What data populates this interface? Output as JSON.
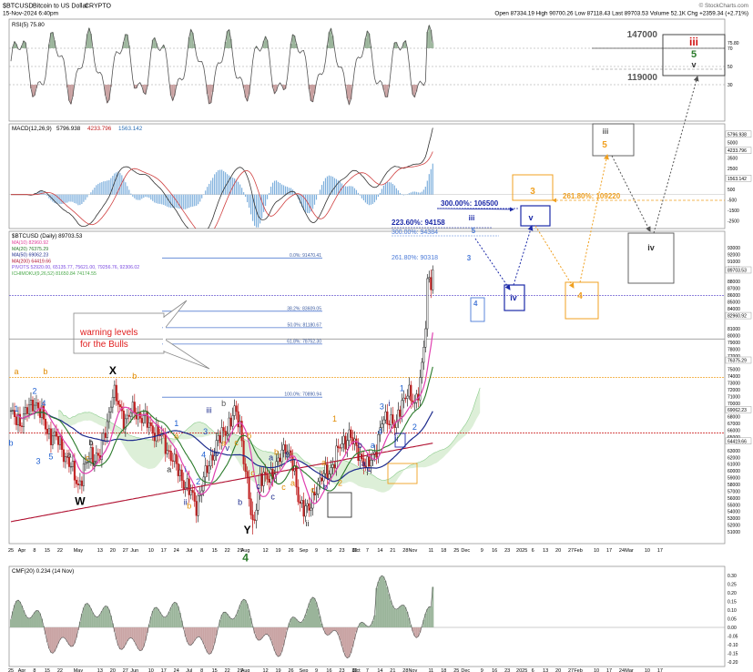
{
  "header": {
    "symbol": "$BTCUSD",
    "name": "Bitcoin to US Dollar",
    "exchange": "CRYPTO",
    "datetime": "15-Nov-2024 6:40pm",
    "ohlc": "Open 87334.19  High 90700.26  Low 87118.43  Last 89703.53  Volume 52.1K  Chg +2359.34 (+2.71%)",
    "watermark": "© StockCharts.com"
  },
  "rsi": {
    "label": "RSI(5) 75.80",
    "scale": [
      "75.80",
      "70",
      "50",
      "30"
    ]
  },
  "macd": {
    "label": "MACD(12,26,9)",
    "values": [
      "5796.938",
      "4233.796",
      "1563.142"
    ],
    "scale": [
      "5796.938",
      "5000",
      "4233.796",
      "3500",
      "2500",
      "1563.142",
      "500",
      "-500",
      "-1500",
      "-2500"
    ]
  },
  "price": {
    "label": "$BTCUSD (Daily) 89703.53",
    "legend": [
      {
        "text": "MA(10) 82960.92",
        "color": "#e0409a"
      },
      {
        "text": "MA(20) 76375.29",
        "color": "#2a7a2a"
      },
      {
        "text": "MA(50) 69062.23",
        "color": "#1c2a8c"
      },
      {
        "text": "MA(200) 64419.66",
        "color": "#b01030"
      },
      {
        "text": "PIVOTS 52920.00, 65135.77, 75621.00, 79256.76, 92306.02",
        "color": "#7a4ae0"
      },
      {
        "text": "ICHIMOKU(9,26,52) 81650.84 74174.55",
        "color": "#48a848"
      }
    ],
    "scale": [
      "93000",
      "92000",
      "91000",
      "90000",
      "89703.53",
      "88000",
      "87000",
      "86000",
      "85000",
      "84000",
      "83000",
      "82960.92",
      "81000",
      "80000",
      "79000",
      "78000",
      "77000",
      "76375.29",
      "75000",
      "74000",
      "73000",
      "72000",
      "71000",
      "70000",
      "69062.23",
      "68000",
      "67000",
      "66000",
      "65000",
      "64419.66",
      "63000",
      "62000",
      "61000",
      "60000",
      "59000",
      "58000",
      "57000",
      "56000",
      "55000",
      "54000",
      "53000",
      "52000",
      "51000"
    ],
    "fib_levels": [
      {
        "label": "0.0%: 91470.41",
        "price": 91470.41
      },
      {
        "label": "38.2%: 83609.05",
        "price": 83609.05
      },
      {
        "label": "50.0%: 81180.67",
        "price": 81180.67
      },
      {
        "label": "61.8%: 78752.30",
        "price": 78752.3
      },
      {
        "label": "100.0%: 70890.94",
        "price": 70890.94
      }
    ],
    "annotations": {
      "warning": "warning levels\nfor the Bulls",
      "ext_300_a": "300.00%: 106500",
      "ext_223": "223.60%: 94158",
      "ext_300_b": "300.00%: 94384",
      "ext_261_a": "261.80%: 90318",
      "ext_261_b": "261.80%: 109220",
      "target_147": "147000",
      "target_119": "119000"
    },
    "waves": {
      "big": {
        "iii": "iii",
        "v5": "5",
        "v": "v"
      },
      "boxes": {
        "three": "3",
        "five": "5",
        "iii": "iii",
        "iv_b": "iv",
        "v_b": "v",
        "iv_grey": "iv",
        "four": "4"
      }
    }
  },
  "cmf": {
    "label": "CMF(20) 0.234 (14 Nov)",
    "scale": [
      "0.30",
      "0.25",
      "0.20",
      "0.15",
      "0.10",
      "0.05",
      "0.00",
      "-0.05",
      "-0.10",
      "-0.15",
      "-0.20"
    ]
  },
  "x_axis": [
    {
      "t": "25",
      "i": 0
    },
    {
      "t": "Apr",
      "i": 6
    },
    {
      "t": "8",
      "i": 13
    },
    {
      "t": "15",
      "i": 20
    },
    {
      "t": "22",
      "i": 27
    },
    {
      "t": "May",
      "i": 37
    },
    {
      "t": "13",
      "i": 49
    },
    {
      "t": "20",
      "i": 56
    },
    {
      "t": "27",
      "i": 63
    },
    {
      "t": "Jun",
      "i": 68
    },
    {
      "t": "10",
      "i": 77
    },
    {
      "t": "17",
      "i": 84
    },
    {
      "t": "24",
      "i": 91
    },
    {
      "t": "Jul",
      "i": 98
    },
    {
      "t": "8",
      "i": 105
    },
    {
      "t": "15",
      "i": 112
    },
    {
      "t": "22",
      "i": 119
    },
    {
      "t": "29",
      "i": 126
    },
    {
      "t": "Aug",
      "i": 129
    },
    {
      "t": "12",
      "i": 140
    },
    {
      "t": "19",
      "i": 147
    },
    {
      "t": "26",
      "i": 154
    },
    {
      "t": "Sep",
      "i": 161
    },
    {
      "t": "9",
      "i": 168
    },
    {
      "t": "16",
      "i": 175
    },
    {
      "t": "23",
      "i": 182
    },
    {
      "t": "30",
      "i": 189
    },
    {
      "t": "Oct",
      "i": 190
    },
    {
      "t": "7",
      "i": 196
    },
    {
      "t": "14",
      "i": 203
    },
    {
      "t": "21",
      "i": 210
    },
    {
      "t": "28",
      "i": 217
    },
    {
      "t": "Nov",
      "i": 221
    },
    {
      "t": "11",
      "i": 231
    },
    {
      "t": "18",
      "i": 238
    },
    {
      "t": "25",
      "i": 245
    },
    {
      "t": "Dec",
      "i": 250
    },
    {
      "t": "9",
      "i": 259
    },
    {
      "t": "16",
      "i": 266
    },
    {
      "t": "23",
      "i": 273
    },
    {
      "t": "2025",
      "i": 281
    },
    {
      "t": "6",
      "i": 287
    },
    {
      "t": "13",
      "i": 294
    },
    {
      "t": "20",
      "i": 301
    },
    {
      "t": "27",
      "i": 308
    },
    {
      "t": "Feb",
      "i": 312
    },
    {
      "t": "10",
      "i": 322
    },
    {
      "t": "17",
      "i": 329
    },
    {
      "t": "24",
      "i": 336
    },
    {
      "t": "Mar",
      "i": 340
    },
    {
      "t": "10",
      "i": 350
    },
    {
      "t": "17",
      "i": 357
    }
  ],
  "wave_labels": [
    {
      "t": "W",
      "i": 38,
      "p": 55000,
      "c": "#000000",
      "s": 12,
      "b": true
    },
    {
      "t": "X",
      "i": 56,
      "p": 74300,
      "c": "#000000",
      "s": 12,
      "b": true
    },
    {
      "t": "Y",
      "i": 130,
      "p": 50700,
      "c": "#000000",
      "s": 12,
      "b": true
    },
    {
      "t": "4",
      "i": 129,
      "p": 46600,
      "c": "#2a7a2a",
      "s": 12,
      "b": true
    },
    {
      "t": "a",
      "i": 3,
      "p": 74300,
      "c": "#e08a00",
      "s": 9
    },
    {
      "t": "b",
      "i": 19,
      "p": 74300,
      "c": "#e08a00",
      "s": 9
    },
    {
      "t": "c",
      "i": 42,
      "p": 61500,
      "c": "#e08a00",
      "s": 9
    },
    {
      "t": "b",
      "i": 68,
      "p": 73600,
      "c": "#e08a00",
      "s": 9
    },
    {
      "t": "a",
      "i": 91,
      "p": 64800,
      "c": "#e08a00",
      "s": 9
    },
    {
      "t": "b",
      "i": 98,
      "p": 54400,
      "c": "#e08a00",
      "s": 9
    },
    {
      "t": "c",
      "i": 124,
      "p": 63800,
      "c": "#e08a00",
      "s": 9
    },
    {
      "t": "b",
      "i": 131,
      "p": 64800,
      "c": "#e08a00",
      "s": 9
    },
    {
      "t": "c",
      "i": 150,
      "p": 57200,
      "c": "#e08a00",
      "s": 9
    },
    {
      "t": "1",
      "i": 178,
      "p": 67300,
      "c": "#e08a00",
      "s": 9
    },
    {
      "t": "2",
      "i": 181,
      "p": 57800,
      "c": "#e08a00",
      "s": 9
    },
    {
      "t": "a",
      "i": 172,
      "p": 60800,
      "c": "#e08a00",
      "s": 9
    },
    {
      "t": "b",
      "i": 146,
      "p": 62400,
      "c": "#e08a00",
      "s": 9
    },
    {
      "t": "c",
      "i": 133,
      "p": 59300,
      "c": "#e08a00",
      "s": 9
    },
    {
      "t": "1",
      "i": 3,
      "p": 68800,
      "c": "#1e5fd0",
      "s": 9
    },
    {
      "t": "2",
      "i": 13,
      "p": 71400,
      "c": "#1e5fd0",
      "s": 9
    },
    {
      "t": "3",
      "i": 15,
      "p": 61000,
      "c": "#1e5fd0",
      "s": 9
    },
    {
      "t": "4",
      "i": 18,
      "p": 69600,
      "c": "#1e5fd0",
      "s": 9
    },
    {
      "t": "5",
      "i": 22,
      "p": 61700,
      "c": "#1e5fd0",
      "s": 9
    },
    {
      "t": "b",
      "i": 0,
      "p": 63700,
      "c": "#1e5fd0",
      "s": 9
    },
    {
      "t": "a",
      "i": 32,
      "p": 62000,
      "c": "#2a2a2a",
      "s": 9
    },
    {
      "t": "b",
      "i": 44,
      "p": 63800,
      "c": "#2a2a2a",
      "s": 9
    },
    {
      "t": "c",
      "i": 46,
      "p": 60600,
      "c": "#2a2a2a",
      "s": 9
    },
    {
      "t": "a",
      "i": 87,
      "p": 59800,
      "c": "#2a2a2a",
      "s": 9
    },
    {
      "t": "i",
      "i": 96,
      "p": 59800,
      "c": "#1e5fd0",
      "s": 9
    },
    {
      "t": "1",
      "i": 91,
      "p": 66600,
      "c": "#1e5fd0",
      "s": 9
    },
    {
      "t": "ii",
      "i": 96,
      "p": 55000,
      "c": "#1c2a8c",
      "s": 9
    },
    {
      "t": "2",
      "i": 103,
      "p": 58000,
      "c": "#1e5fd0",
      "s": 9
    },
    {
      "t": "3",
      "i": 107,
      "p": 65400,
      "c": "#1e5fd0",
      "s": 9
    },
    {
      "t": "4",
      "i": 106,
      "p": 62000,
      "c": "#1e5fd0",
      "s": 9
    },
    {
      "t": "iii",
      "i": 109,
      "p": 68600,
      "c": "#1c2a8c",
      "s": 9
    },
    {
      "t": "iv",
      "i": 113,
      "p": 62200,
      "c": "#1c2a8c",
      "s": 9
    },
    {
      "t": "v",
      "i": 119,
      "p": 63000,
      "c": "#1c2a8c",
      "s": 9
    },
    {
      "t": "b",
      "i": 117,
      "p": 69600,
      "c": "#555555",
      "s": 9
    },
    {
      "t": "a",
      "i": 117,
      "p": 63700,
      "c": "#e08a00",
      "s": 9
    },
    {
      "t": "b",
      "i": 126,
      "p": 55000,
      "c": "#1c2a8c",
      "s": 9
    },
    {
      "t": "c",
      "i": 136,
      "p": 57300,
      "c": "#1c2a8c",
      "s": 9
    },
    {
      "t": "b",
      "i": 152,
      "p": 62000,
      "c": "#1c2a8c",
      "s": 9
    },
    {
      "t": "a",
      "i": 143,
      "p": 61600,
      "c": "#1c2a8c",
      "s": 9
    },
    {
      "t": "c",
      "i": 144,
      "p": 55800,
      "c": "#1c2a8c",
      "s": 9
    },
    {
      "t": "a",
      "i": 155,
      "p": 57800,
      "c": "#e08a00",
      "s": 9
    },
    {
      "t": "ii",
      "i": 163,
      "p": 51800,
      "c": "#2a2a2a",
      "s": 9
    },
    {
      "t": "c",
      "i": 166,
      "p": 56800,
      "c": "#e08a00",
      "s": 9
    },
    {
      "t": "b",
      "i": 173,
      "p": 57200,
      "c": "#1c2a8c",
      "s": 9
    },
    {
      "t": "a",
      "i": 194,
      "p": 60700,
      "c": "#1c2a8c",
      "s": 9
    },
    {
      "t": "b",
      "i": 192,
      "p": 63400,
      "c": "#1c2a8c",
      "s": 9
    },
    {
      "t": "c",
      "i": 197,
      "p": 59900,
      "c": "#1c2a8c",
      "s": 9
    },
    {
      "t": "a",
      "i": 199,
      "p": 63400,
      "c": "#1e5fd0",
      "s": 9
    },
    {
      "t": "3",
      "i": 204,
      "p": 69100,
      "c": "#1e5fd0",
      "s": 9
    },
    {
      "t": "i",
      "i": 208,
      "p": 69600,
      "c": "#1c2a8c",
      "s": 9
    },
    {
      "t": "4",
      "i": 203,
      "p": 65400,
      "c": "#1e5fd0",
      "s": 9
    },
    {
      "t": "ii",
      "i": 212,
      "p": 64300,
      "c": "#1c2a8c",
      "s": 9
    },
    {
      "t": "1",
      "i": 215,
      "p": 71800,
      "c": "#1e5fd0",
      "s": 9
    },
    {
      "t": "2",
      "i": 222,
      "p": 66100,
      "c": "#1e5fd0",
      "s": 9
    }
  ],
  "chart_data": {
    "type": "table",
    "title": "$BTCUSD (Daily)",
    "instrument": "Bitcoin to US Dollar",
    "price_range": [
      50500,
      93500
    ],
    "approx_closes": [
      {
        "date": "Mar 25",
        "close": 68000
      },
      {
        "date": "Apr 8",
        "close": 70500
      },
      {
        "date": "Apr 30",
        "close": 58000
      },
      {
        "date": "May 20",
        "close": 71500
      },
      {
        "date": "Jun 24",
        "close": 60500
      },
      {
        "date": "Jul 5",
        "close": 55000
      },
      {
        "date": "Jul 29",
        "close": 67000
      },
      {
        "date": "Aug 5",
        "close": 51500
      },
      {
        "date": "Sep 6",
        "close": 53800
      },
      {
        "date": "Sep 27",
        "close": 65500
      },
      {
        "date": "Oct 10",
        "close": 60300
      },
      {
        "date": "Oct 29",
        "close": 72300
      },
      {
        "date": "Nov 5",
        "close": 69300
      },
      {
        "date": "Nov 12",
        "close": 88000
      },
      {
        "date": "Nov 15",
        "close": 89703.53
      }
    ],
    "last": 89703.53,
    "moving_averages": {
      "MA(10)": 82960.92,
      "MA(20)": 76375.29,
      "MA(50)": 69062.23,
      "MA(200)": 64419.66
    },
    "pivots": [
      52920.0,
      65135.77,
      75621.0,
      79256.76,
      92306.02
    ],
    "ichimoku": [
      81650.84,
      74174.55
    ],
    "fib_retracement": {
      "0.0%": 91470.41,
      "38.2%": 83609.05,
      "50.0%": 81180.67,
      "61.8%": 78752.3,
      "100.0%": 70890.94
    },
    "fib_extensions": {
      "261.80% a": 90318,
      "300.00% a": 94384,
      "223.60%": 94158,
      "300.00% b": 106500,
      "261.80% b": 109220
    },
    "targets": [
      147000,
      119000
    ]
  }
}
